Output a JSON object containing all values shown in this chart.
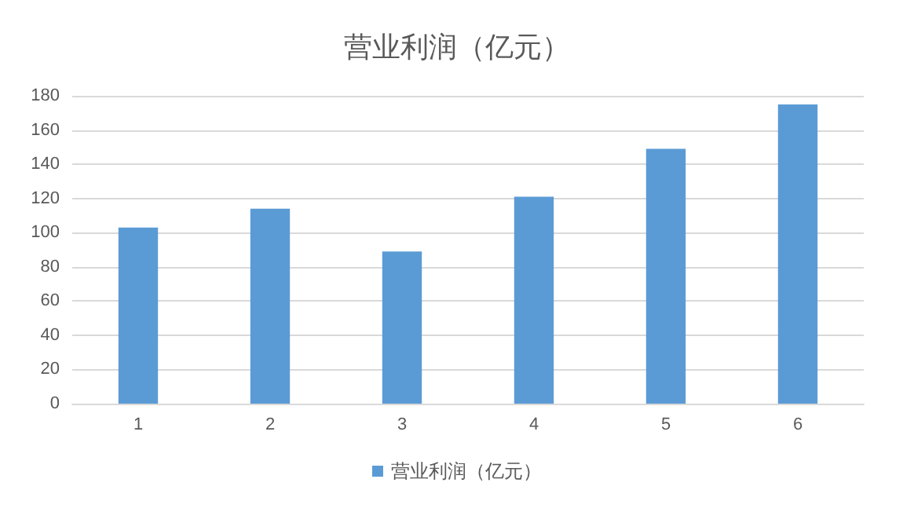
{
  "chart_data": {
    "type": "bar",
    "title": "营业利润（亿元）",
    "categories": [
      "1",
      "2",
      "3",
      "4",
      "5",
      "6"
    ],
    "series": [
      {
        "name": "营业利润（亿元）",
        "color": "#5b9bd5",
        "values": [
          103,
          114,
          89,
          121,
          149,
          175
        ]
      }
    ],
    "ylim": [
      0,
      180
    ],
    "yticks": [
      0,
      20,
      40,
      60,
      80,
      100,
      120,
      140,
      160,
      180
    ],
    "grid": "y",
    "legend": "bottom"
  }
}
